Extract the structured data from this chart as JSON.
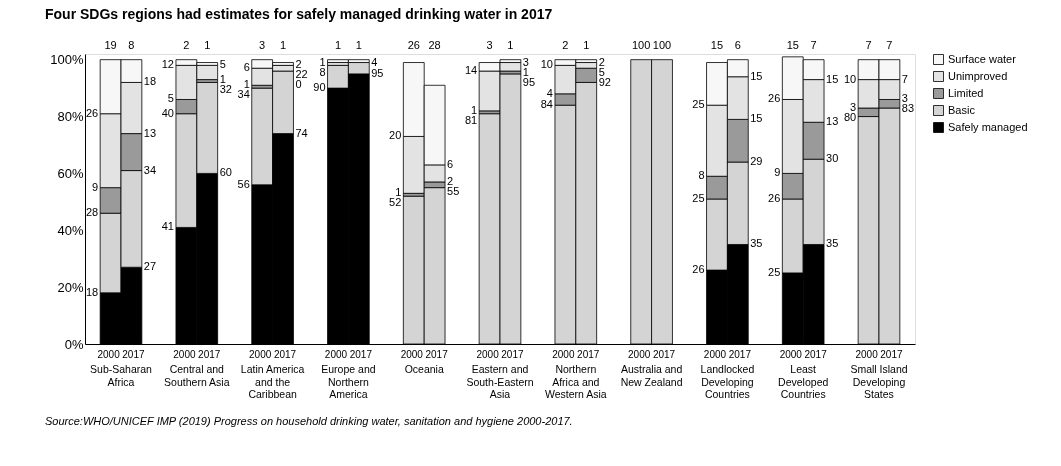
{
  "chart_data": {
    "type": "bar",
    "stacked": true,
    "title": "Four SDGs regions had estimates for safely managed drinking water in 2017",
    "categories": [
      "2000",
      "2017",
      "2000",
      "2017",
      "2000",
      "2017",
      "2000",
      "2017",
      "2000",
      "2017",
      "2000",
      "2017",
      "2000",
      "2017",
      "2000",
      "2017",
      "2000",
      "2017",
      "2000",
      "2017",
      "2000",
      "2017"
    ],
    "series": [
      {
        "name": "Safely managed",
        "color": "#000000",
        "values": [
          18,
          27,
          41,
          60,
          56,
          74,
          90,
          95,
          null,
          null,
          null,
          null,
          null,
          null,
          null,
          null,
          26,
          35,
          25,
          35,
          null,
          null
        ]
      },
      {
        "name": "Basic",
        "color": "#d4d4d4",
        "values": [
          28,
          34,
          40,
          32,
          34,
          22,
          8,
          4,
          52,
          55,
          81,
          95,
          84,
          92,
          100,
          100,
          25,
          29,
          26,
          30,
          80,
          83
        ]
      },
      {
        "name": "Limited",
        "color": "#9a9a9a",
        "values": [
          9,
          13,
          5,
          1,
          1,
          0,
          null,
          null,
          1,
          2,
          1,
          1,
          4,
          5,
          null,
          null,
          8,
          15,
          9,
          13,
          3,
          3
        ]
      },
      {
        "name": "Unimproved",
        "color": "#e3e3e3",
        "values": [
          26,
          18,
          12,
          5,
          6,
          2,
          1,
          null,
          20,
          6,
          14,
          3,
          10,
          2,
          null,
          null,
          25,
          15,
          26,
          15,
          10,
          7
        ]
      },
      {
        "name": "Surface water",
        "color": "#f7f7f7",
        "values": [
          19,
          8,
          2,
          1,
          3,
          1,
          1,
          1,
          26,
          28,
          3,
          1,
          2,
          1,
          null,
          null,
          15,
          6,
          15,
          7,
          7,
          7
        ]
      }
    ],
    "annotations": [
      "Sub-Saharan Africa",
      "Central and Southern Asia",
      "Latin America and the Caribbean",
      "Europe and Northern America",
      "Oceania",
      "Eastern and South-Eastern Asia",
      "Northern Africa and Western Asia",
      "Australia and New Zealand",
      "Landlocked Developing Countries",
      "Least Developed Countries",
      "Small Island Developing States",
      "Source:WHO/UNICEF IMP (2019) Progress on household drinking water, sanitation and hygiene 2000-2017."
    ],
    "ylim": [
      0,
      102
    ],
    "yticks": [
      {
        "value": 0,
        "label": "0%"
      },
      {
        "value": 20,
        "label": "20%"
      },
      {
        "value": 40,
        "label": "40%"
      },
      {
        "value": 60,
        "label": "60%"
      },
      {
        "value": 80,
        "label": "80%"
      },
      {
        "value": 100,
        "label": "100%"
      }
    ],
    "data_labels": true,
    "legend": "right",
    "grid": false
  }
}
